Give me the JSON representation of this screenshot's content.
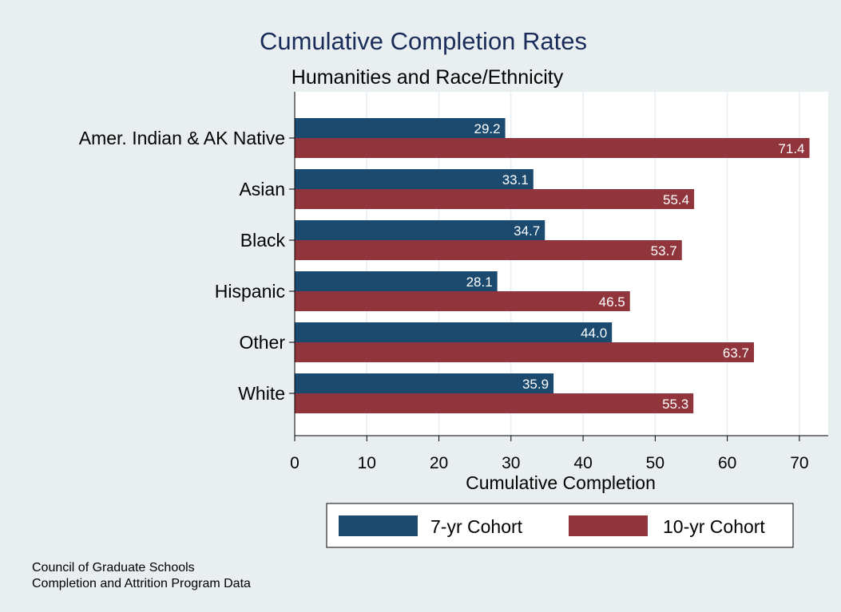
{
  "colors": {
    "background": "#e9eff1",
    "plot_background": "#ffffff",
    "series_7yr": "#1b4a6e",
    "series_10yr": "#90353b",
    "title": "#1a2d5a",
    "grid": "#e6eef1"
  },
  "chart_data": {
    "type": "bar",
    "orientation": "horizontal",
    "title": "Cumulative Completion Rates",
    "subtitle": "Humanities and Race/Ethnicity",
    "xlabel": "Cumulative Completion",
    "ylabel": "",
    "categories": [
      "Amer. Indian & AK Native",
      "Asian",
      "Black",
      "Hispanic",
      "Other",
      "White"
    ],
    "series": [
      {
        "name": "7-yr Cohort",
        "values": [
          29.2,
          33.1,
          34.7,
          28.1,
          44.0,
          35.9
        ],
        "labels": [
          "29.2",
          "33.1",
          "34.7",
          "28.1",
          "44.0",
          "35.9"
        ]
      },
      {
        "name": "10-yr Cohort",
        "values": [
          71.4,
          55.4,
          53.7,
          46.5,
          63.7,
          55.3
        ],
        "labels": [
          "71.4",
          "55.4",
          "53.7",
          "46.5",
          "63.7",
          "55.3"
        ]
      }
    ],
    "xlim": [
      0,
      74
    ],
    "xticks": [
      0,
      10,
      20,
      30,
      40,
      50,
      60,
      70
    ],
    "grid": true,
    "legend_position": "bottom"
  },
  "source_note": {
    "line1": "Council of Graduate Schools",
    "line2": "Completion and Attrition Program Data"
  }
}
